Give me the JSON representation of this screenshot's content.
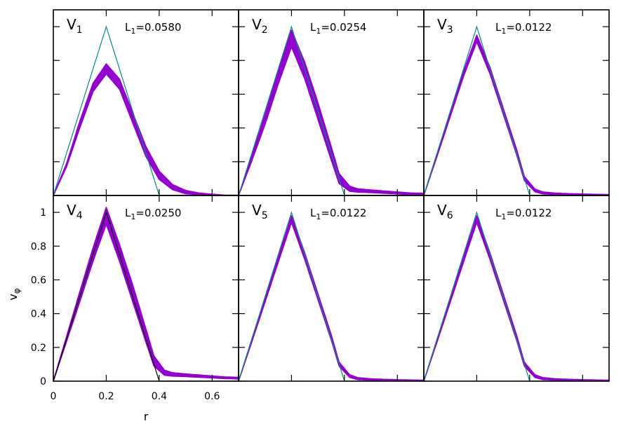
{
  "chart_data": {
    "type": "scatter",
    "layout": "2x3 grid, shared axes",
    "xlabel": "r",
    "ylabel": "v",
    "ylabel_subscript": "φ",
    "xlim": [
      0,
      0.7
    ],
    "ylim": [
      0,
      1.1
    ],
    "x_ticks": [
      "0",
      "0.2",
      "0.4",
      "0.6"
    ],
    "y_ticks": [
      "0",
      "0.2",
      "0.4",
      "0.6",
      "0.8",
      "1"
    ],
    "x_tick_values": [
      0,
      0.2,
      0.4,
      0.6
    ],
    "y_tick_values": [
      0,
      0.2,
      0.4,
      0.6,
      0.8,
      1.0
    ],
    "scatter_color": "#9400d3",
    "reference_color": "#008b8b",
    "reference_color_v4": "#000000",
    "reference_profile": {
      "x": [
        0,
        0.2,
        0.4,
        0.7
      ],
      "y": [
        0,
        1.0,
        0,
        0
      ]
    },
    "panels": [
      {
        "label": "V",
        "sub": "1",
        "annotation": "L",
        "annotation_sub": "1",
        "annotation_value": "=0.0580",
        "profile": {
          "x": [
            0,
            0.05,
            0.1,
            0.15,
            0.2,
            0.25,
            0.3,
            0.35,
            0.4,
            0.45,
            0.5,
            0.55,
            0.6,
            0.65,
            0.7
          ],
          "y": [
            0,
            0.18,
            0.42,
            0.64,
            0.75,
            0.66,
            0.46,
            0.26,
            0.12,
            0.05,
            0.02,
            0.01,
            0.005,
            0.0,
            0.0
          ]
        },
        "spread": [
          0,
          0.01,
          0.02,
          0.025,
          0.03,
          0.03,
          0.03,
          0.03,
          0.025,
          0.015,
          0.01,
          0.005,
          0.003,
          0.002,
          0.002
        ]
      },
      {
        "label": "V",
        "sub": "2",
        "annotation": "L",
        "annotation_sub": "1",
        "annotation_value": "=0.0254",
        "profile": {
          "x": [
            0,
            0.05,
            0.1,
            0.15,
            0.2,
            0.25,
            0.3,
            0.35,
            0.38,
            0.42,
            0.45,
            0.5,
            0.55,
            0.6,
            0.65,
            0.7
          ],
          "y": [
            0,
            0.22,
            0.45,
            0.7,
            0.93,
            0.74,
            0.5,
            0.25,
            0.1,
            0.04,
            0.03,
            0.025,
            0.02,
            0.015,
            0.01,
            0.008
          ]
        },
        "spread": [
          0,
          0.015,
          0.03,
          0.04,
          0.05,
          0.05,
          0.05,
          0.04,
          0.03,
          0.015,
          0.01,
          0.008,
          0.007,
          0.006,
          0.005,
          0.005
        ]
      },
      {
        "label": "V",
        "sub": "3",
        "annotation": "L",
        "annotation_sub": "1",
        "annotation_value": "=0.0122",
        "profile": {
          "x": [
            0,
            0.05,
            0.1,
            0.15,
            0.2,
            0.25,
            0.3,
            0.35,
            0.38,
            0.42,
            0.45,
            0.5,
            0.55,
            0.6,
            0.65,
            0.7
          ],
          "y": [
            0,
            0.24,
            0.48,
            0.72,
            0.93,
            0.74,
            0.5,
            0.26,
            0.1,
            0.03,
            0.015,
            0.01,
            0.008,
            0.006,
            0.005,
            0.004
          ]
        },
        "spread": [
          0,
          0.008,
          0.012,
          0.015,
          0.02,
          0.02,
          0.018,
          0.016,
          0.012,
          0.008,
          0.006,
          0.004,
          0.003,
          0.003,
          0.002,
          0.002
        ]
      },
      {
        "label": "V",
        "sub": "4",
        "annotation": "L",
        "annotation_sub": "1",
        "annotation_value": "=0.0250",
        "profile": {
          "x": [
            0,
            0.05,
            0.1,
            0.15,
            0.2,
            0.25,
            0.3,
            0.35,
            0.38,
            0.42,
            0.45,
            0.5,
            0.55,
            0.6,
            0.65,
            0.7
          ],
          "y": [
            0,
            0.25,
            0.5,
            0.75,
            0.98,
            0.76,
            0.52,
            0.27,
            0.12,
            0.05,
            0.04,
            0.035,
            0.03,
            0.025,
            0.02,
            0.018
          ]
        },
        "spread": [
          0,
          0.015,
          0.03,
          0.04,
          0.05,
          0.05,
          0.05,
          0.04,
          0.03,
          0.015,
          0.01,
          0.008,
          0.007,
          0.006,
          0.005,
          0.005
        ]
      },
      {
        "label": "V",
        "sub": "5",
        "annotation": "L",
        "annotation_sub": "1",
        "annotation_value": "=0.0122",
        "profile": {
          "x": [
            0,
            0.05,
            0.1,
            0.15,
            0.2,
            0.25,
            0.3,
            0.35,
            0.38,
            0.42,
            0.45,
            0.5,
            0.55,
            0.6,
            0.65,
            0.7
          ],
          "y": [
            0,
            0.24,
            0.48,
            0.72,
            0.96,
            0.74,
            0.5,
            0.26,
            0.1,
            0.03,
            0.015,
            0.01,
            0.008,
            0.006,
            0.005,
            0.004
          ]
        },
        "spread": [
          0,
          0.008,
          0.012,
          0.015,
          0.02,
          0.02,
          0.018,
          0.016,
          0.012,
          0.008,
          0.006,
          0.004,
          0.003,
          0.003,
          0.002,
          0.002
        ]
      },
      {
        "label": "V",
        "sub": "6",
        "annotation": "L",
        "annotation_sub": "1",
        "annotation_value": "=0.0122",
        "profile": {
          "x": [
            0,
            0.05,
            0.1,
            0.15,
            0.2,
            0.25,
            0.3,
            0.35,
            0.38,
            0.42,
            0.45,
            0.5,
            0.55,
            0.6,
            0.65,
            0.7
          ],
          "y": [
            0,
            0.24,
            0.48,
            0.72,
            0.96,
            0.74,
            0.5,
            0.26,
            0.1,
            0.03,
            0.015,
            0.01,
            0.008,
            0.006,
            0.005,
            0.004
          ]
        },
        "spread": [
          0,
          0.008,
          0.012,
          0.015,
          0.02,
          0.02,
          0.018,
          0.016,
          0.012,
          0.008,
          0.006,
          0.004,
          0.003,
          0.003,
          0.002,
          0.002
        ]
      }
    ]
  }
}
